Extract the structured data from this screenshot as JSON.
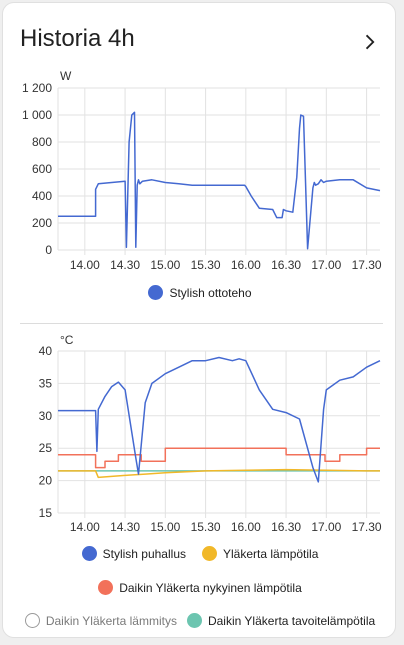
{
  "card": {
    "title": "Historia 4h",
    "more_icon": "chevron-right-icon"
  },
  "chart_data": [
    {
      "type": "line",
      "title": "",
      "ylabel": "W",
      "xlabel": "",
      "x_ticks": [
        "14.00",
        "14.30",
        "15.00",
        "15.30",
        "16.00",
        "16.30",
        "17.00",
        "17.30"
      ],
      "y_ticks": [
        "0",
        "200",
        "400",
        "600",
        "800",
        "1 000",
        "1 200"
      ],
      "ylim": [
        0,
        1200
      ],
      "xlim": [
        "13.40",
        "17.40"
      ],
      "grid": true,
      "legend_position": "bottom",
      "series": [
        {
          "name": "Stylish ottoteho",
          "color": "#4469d1",
          "x": [
            "13.40",
            "14.08",
            "14.08",
            "14.10",
            "14.20",
            "14.30",
            "14.31",
            "14.33",
            "14.35",
            "14.37",
            "14.38",
            "14.39",
            "14.40",
            "14.41",
            "14.43",
            "14.50",
            "15.00",
            "15.10",
            "15.20",
            "15.30",
            "15.40",
            "15.50",
            "15.59",
            "16.00",
            "16.04",
            "16.10",
            "16.20",
            "16.23",
            "16.27",
            "16.28",
            "16.30",
            "16.35",
            "16.38",
            "16.40",
            "16.41",
            "16.43",
            "16.46",
            "16.50",
            "16.51",
            "16.52",
            "16.54",
            "16.56",
            "16.58",
            "17.00",
            "17.10",
            "17.20",
            "17.30",
            "17.40"
          ],
          "values": [
            250,
            250,
            450,
            490,
            500,
            510,
            20,
            800,
            1000,
            1020,
            20,
            480,
            520,
            490,
            510,
            520,
            500,
            490,
            480,
            480,
            480,
            480,
            480,
            470,
            400,
            310,
            300,
            240,
            240,
            300,
            290,
            280,
            540,
            900,
            1000,
            990,
            10,
            460,
            500,
            480,
            490,
            520,
            500,
            510,
            520,
            520,
            460,
            440
          ]
        }
      ]
    },
    {
      "type": "line",
      "title": "",
      "ylabel": "°C",
      "xlabel": "",
      "x_ticks": [
        "14.00",
        "14.30",
        "15.00",
        "15.30",
        "16.00",
        "16.30",
        "17.00",
        "17.30"
      ],
      "y_ticks": [
        "15",
        "20",
        "25",
        "30",
        "35",
        "40"
      ],
      "ylim": [
        15,
        40
      ],
      "xlim": [
        "13.40",
        "17.40"
      ],
      "grid": true,
      "legend_position": "bottom",
      "series": [
        {
          "name": "Stylish puhallus",
          "color": "#4469d1",
          "x": [
            "13.40",
            "14.08",
            "14.09",
            "14.10",
            "14.15",
            "14.20",
            "14.25",
            "14.30",
            "14.38",
            "14.40",
            "14.45",
            "14.50",
            "15.00",
            "15.10",
            "15.20",
            "15.30",
            "15.40",
            "15.50",
            "15.55",
            "16.00",
            "16.10",
            "16.20",
            "16.30",
            "16.40",
            "16.50",
            "16.54",
            "16.55",
            "16.58",
            "17.00",
            "17.10",
            "17.20",
            "17.30",
            "17.40"
          ],
          "values": [
            30.8,
            30.8,
            24.5,
            31.0,
            33.0,
            34.5,
            35.2,
            34.0,
            23.5,
            21.0,
            32.0,
            35.0,
            36.5,
            37.5,
            38.5,
            38.5,
            39.0,
            38.5,
            38.8,
            38.5,
            34.0,
            31.0,
            30.5,
            29.5,
            22.0,
            19.8,
            22.5,
            31.0,
            34.0,
            35.5,
            36.0,
            37.5,
            38.5
          ]
        },
        {
          "name": "Yläkerta lämpötila",
          "color": "#f1b829",
          "x": [
            "13.40",
            "14.08",
            "14.10",
            "14.30",
            "14.45",
            "15.00",
            "15.30",
            "16.00",
            "16.30",
            "17.00",
            "17.30",
            "17.40"
          ],
          "values": [
            21.5,
            21.5,
            20.5,
            20.8,
            21.0,
            21.2,
            21.5,
            21.6,
            21.7,
            21.6,
            21.5,
            21.5
          ]
        },
        {
          "name": "Daikin Yläkerta nykyinen lämpötila",
          "color": "#f2715a",
          "x": [
            "13.40",
            "14.08",
            "14.08",
            "14.15",
            "14.15",
            "14.25",
            "14.25",
            "14.42",
            "14.42",
            "15.00",
            "15.00",
            "16.30",
            "16.30",
            "16.59",
            "16.59",
            "17.10",
            "17.10",
            "17.30",
            "17.30",
            "17.40"
          ],
          "values": [
            24,
            24,
            22,
            22,
            23,
            23,
            24,
            24,
            23,
            23,
            25,
            25,
            24,
            24,
            23,
            23,
            24,
            24,
            25,
            25
          ]
        },
        {
          "name": "Daikin Yläkerta lämmitys",
          "color": "#a9a9a9",
          "hidden": true,
          "x": [],
          "values": []
        },
        {
          "name": "Daikin Yläkerta tavoitelämpötila",
          "color": "#6cc5b0",
          "x": [
            "13.40",
            "17.40"
          ],
          "values": [
            21.5,
            21.5
          ]
        }
      ]
    }
  ]
}
